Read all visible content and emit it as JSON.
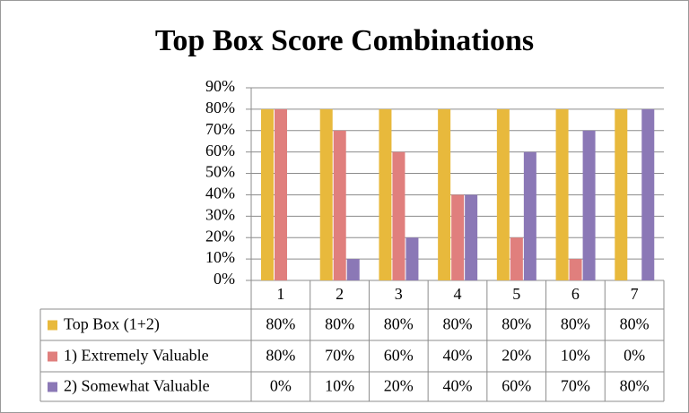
{
  "chart_data": {
    "type": "bar",
    "title": "Top Box Score Combinations",
    "categories": [
      "1",
      "2",
      "3",
      "4",
      "5",
      "6",
      "7"
    ],
    "series": [
      {
        "name": "Top Box (1+2)",
        "color": "#e8b93c",
        "values": [
          80,
          80,
          80,
          80,
          80,
          80,
          80
        ],
        "value_labels": [
          "80%",
          "80%",
          "80%",
          "80%",
          "80%",
          "80%",
          "80%"
        ]
      },
      {
        "name": "1) Extremely Valuable",
        "color": "#e07f7d",
        "values": [
          80,
          70,
          60,
          40,
          20,
          10,
          0
        ],
        "value_labels": [
          "80%",
          "70%",
          "60%",
          "40%",
          "20%",
          "10%",
          "0%"
        ]
      },
      {
        "name": "2) Somewhat Valuable",
        "color": "#8b78b6",
        "values": [
          0,
          10,
          20,
          40,
          60,
          70,
          80
        ],
        "value_labels": [
          "0%",
          "10%",
          "20%",
          "40%",
          "60%",
          "70%",
          "80%"
        ]
      }
    ],
    "ylim": [
      0,
      90
    ],
    "yticks": [
      {
        "value": 0,
        "label": "0%"
      },
      {
        "value": 10,
        "label": "10%"
      },
      {
        "value": 20,
        "label": "20%"
      },
      {
        "value": 30,
        "label": "30%"
      },
      {
        "value": 40,
        "label": "40%"
      },
      {
        "value": 50,
        "label": "50%"
      },
      {
        "value": 60,
        "label": "60%"
      },
      {
        "value": 70,
        "label": "70%"
      },
      {
        "value": 80,
        "label": "80%"
      },
      {
        "value": 90,
        "label": "90%"
      }
    ],
    "grid": true
  }
}
